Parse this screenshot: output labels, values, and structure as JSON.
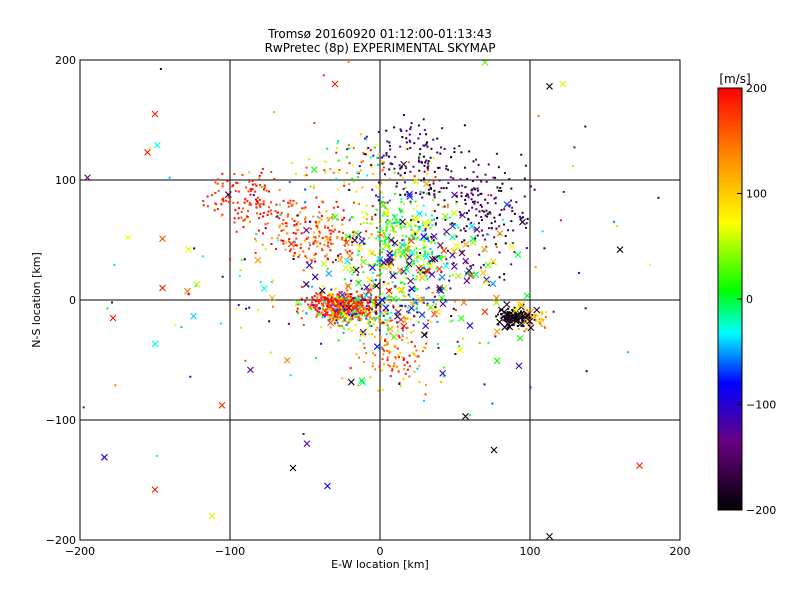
{
  "chart_data": {
    "type": "scatter",
    "title": "Tromsø 20160920 01:12:00-01:13:43",
    "subtitle": "RwPretec (8p) EXPERIMENTAL SKYMAP",
    "xlabel": "E-W location [km]",
    "ylabel": "N-S location [km]",
    "xlim": [
      -200,
      200
    ],
    "ylim": [
      -200,
      200
    ],
    "xticks": [
      -200,
      -100,
      0,
      100,
      200
    ],
    "yticks": [
      -200,
      -100,
      0,
      100,
      200
    ],
    "grid": true,
    "colorbar": {
      "label": "[m/s]",
      "min": -200,
      "max": 200,
      "ticks": [
        200,
        100,
        0,
        -100,
        -200
      ],
      "colormap": [
        "#000000",
        "#6a0080",
        "#0000ff",
        "#00ffff",
        "#00ff00",
        "#ffff00",
        "#ff8000",
        "#ff0000"
      ]
    },
    "series": [
      {
        "marker": "dot",
        "clusters": [
          {
            "center": [
              -25,
              -5
            ],
            "spread": [
              18,
              9
            ],
            "count": 450,
            "velocity_mean": 185,
            "velocity_spread": 30
          },
          {
            "center": [
              -15,
              -12
            ],
            "spread": [
              25,
              12
            ],
            "count": 160,
            "velocity_mean": 40,
            "velocity_spread": 140
          },
          {
            "center": [
              -90,
              85
            ],
            "spread": [
              22,
              18
            ],
            "count": 120,
            "velocity_mean": 185,
            "velocity_spread": 25
          },
          {
            "center": [
              -40,
              55
            ],
            "spread": [
              35,
              25
            ],
            "count": 220,
            "velocity_mean": 170,
            "velocity_spread": 60
          },
          {
            "center": [
              15,
              50
            ],
            "spread": [
              22,
              28
            ],
            "count": 320,
            "velocity_mean": 20,
            "velocity_spread": 70
          },
          {
            "center": [
              65,
              75
            ],
            "spread": [
              35,
              35
            ],
            "count": 200,
            "velocity_mean": -160,
            "velocity_spread": 40
          },
          {
            "center": [
              20,
              115
            ],
            "spread": [
              30,
              25
            ],
            "count": 120,
            "velocity_mean": -150,
            "velocity_spread": 60
          },
          {
            "center": [
              -10,
              110
            ],
            "spread": [
              35,
              20
            ],
            "count": 80,
            "velocity_mean": 80,
            "velocity_spread": 120
          },
          {
            "center": [
              90,
              -15
            ],
            "spread": [
              10,
              6
            ],
            "count": 90,
            "velocity_mean": -200,
            "velocity_spread": 20
          },
          {
            "center": [
              100,
              -15
            ],
            "spread": [
              8,
              7
            ],
            "count": 50,
            "velocity_mean": 110,
            "velocity_spread": 40
          },
          {
            "center": [
              10,
              -45
            ],
            "spread": [
              18,
              25
            ],
            "count": 110,
            "velocity_mean": 150,
            "velocity_spread": 60
          },
          {
            "center": [
              5,
              0
            ],
            "spread": [
              35,
              25
            ],
            "count": 160,
            "velocity_mean": 0,
            "velocity_spread": 150
          },
          {
            "center": [
              0,
              30
            ],
            "spread": [
              120,
              110
            ],
            "count": 220,
            "velocity_mean": 0,
            "velocity_spread": 200
          }
        ]
      },
      {
        "marker": "cross",
        "clusters": [
          {
            "center": [
              20,
              30
            ],
            "spread": [
              50,
              45
            ],
            "count": 150,
            "velocity_mean": 0,
            "velocity_spread": 190
          },
          {
            "center": [
              90,
              -15
            ],
            "spread": [
              12,
              8
            ],
            "count": 30,
            "velocity_mean": -190,
            "velocity_spread": 20
          },
          {
            "center": [
              0,
              10
            ],
            "spread": [
              110,
              95
            ],
            "count": 60,
            "velocity_mean": 0,
            "velocity_spread": 200
          }
        ],
        "points": [
          [
            -150,
            -158,
            190
          ],
          [
            -112,
            -180,
            60
          ],
          [
            -58,
            -140,
            -200
          ],
          [
            -35,
            -155,
            -80
          ],
          [
            173,
            -138,
            190
          ],
          [
            113,
            -197,
            -200
          ],
          [
            57,
            -97,
            -200
          ],
          [
            76,
            -125,
            -200
          ],
          [
            -178,
            -15,
            190
          ],
          [
            -195,
            102,
            -140
          ],
          [
            -168,
            52,
            70
          ],
          [
            -145,
            10,
            190
          ],
          [
            -155,
            123,
            190
          ],
          [
            -150,
            155,
            190
          ],
          [
            122,
            180,
            60
          ],
          [
            113,
            178,
            -200
          ],
          [
            70,
            198,
            30
          ],
          [
            160,
            42,
            -200
          ],
          [
            95,
            65,
            -200
          ],
          [
            -30,
            180,
            190
          ]
        ]
      }
    ]
  }
}
